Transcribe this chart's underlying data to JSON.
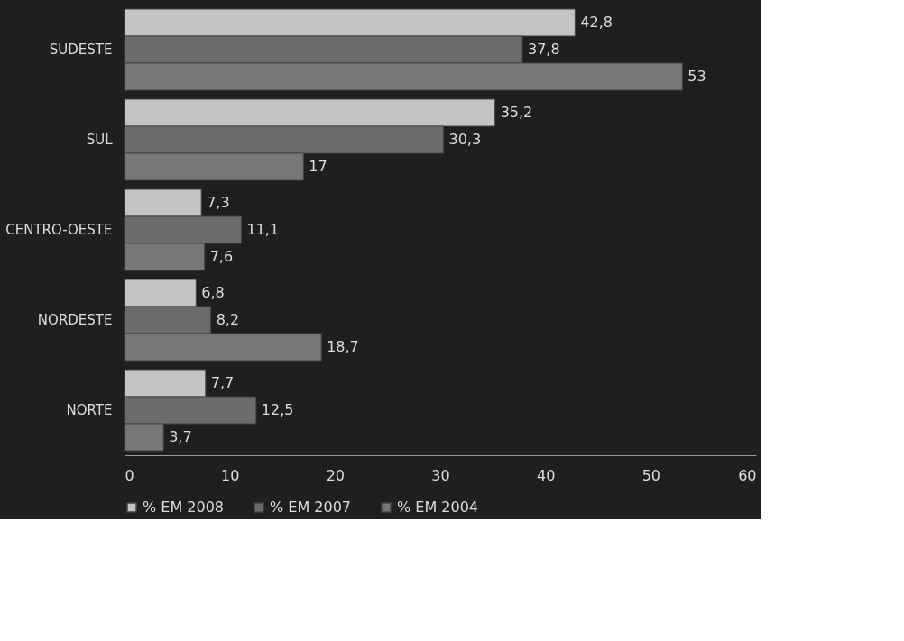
{
  "chart_data": {
    "type": "bar",
    "orientation": "horizontal",
    "categories": [
      "SUDESTE",
      "SUL",
      "CENTRO-OESTE",
      "NORDESTE",
      "NORTE"
    ],
    "series": [
      {
        "name": "% EM 2008",
        "color": "#c4c4c4",
        "values": [
          42.8,
          35.2,
          7.3,
          6.8,
          7.7
        ],
        "value_labels": [
          "42,8",
          "35,2",
          "7,3",
          "6,8",
          "7,7"
        ]
      },
      {
        "name": "% EM 2007",
        "color": "#6b6b6b",
        "values": [
          37.8,
          30.3,
          11.1,
          8.2,
          12.5
        ],
        "value_labels": [
          "37,8",
          "30,3",
          "11,1",
          "8,2",
          "12,5"
        ]
      },
      {
        "name": "% EM 2004",
        "color": "#777777",
        "values": [
          53,
          17,
          7.6,
          18.7,
          3.7
        ],
        "value_labels": [
          "53",
          "17",
          "7,6",
          "18,7",
          "3,7"
        ]
      }
    ],
    "xlim": [
      0,
      60
    ],
    "xticks": [
      0,
      10,
      20,
      30,
      40,
      50,
      60
    ],
    "grid": false,
    "legend": "bottom"
  }
}
